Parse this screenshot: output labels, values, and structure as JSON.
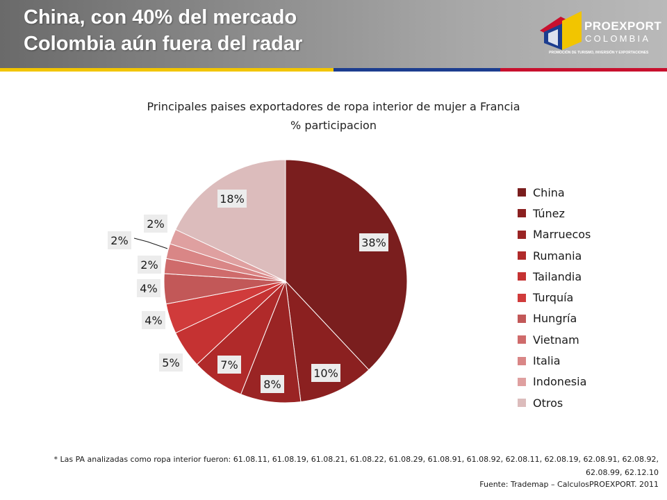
{
  "header": {
    "title_line1": "China, con 40% del mercado",
    "title_line2": "Colombia aún fuera del radar"
  },
  "logo": {
    "name": "PROEXPORT",
    "country": "COLOMBIA",
    "tagline": "PROMOCIÓN DE TURISMO, INVERSIÓN Y EXPORTACIONES"
  },
  "colors": {
    "flag_yellow": "#f2c500",
    "flag_blue": "#1c3d8f",
    "flag_red": "#c8102e"
  },
  "chart_data": {
    "type": "pie",
    "title_line1": "Principales paises exportadores de ropa interior de mujer a Francia",
    "title_line2": "% participacion",
    "legend_position": "right",
    "slices": [
      {
        "label": "China",
        "value": 38,
        "value_label": "38%",
        "color": "#7a1e1e"
      },
      {
        "label": "Túnez",
        "value": 10,
        "value_label": "10%",
        "color": "#8b2020"
      },
      {
        "label": "Marruecos",
        "value": 8,
        "value_label": "8%",
        "color": "#9a2424"
      },
      {
        "label": "Rumania",
        "value": 7,
        "value_label": "7%",
        "color": "#b02a2a"
      },
      {
        "label": "Tailandia",
        "value": 5,
        "value_label": "5%",
        "color": "#c53232"
      },
      {
        "label": "Turquía",
        "value": 4,
        "value_label": "4%",
        "color": "#d03b3b"
      },
      {
        "label": "Hungría",
        "value": 4,
        "value_label": "4%",
        "color": "#c25858"
      },
      {
        "label": "Vietnam",
        "value": 2,
        "value_label": "2%",
        "color": "#cf6b6b"
      },
      {
        "label": "Italia",
        "value": 2,
        "value_label": "2%",
        "color": "#d98686"
      },
      {
        "label": "Indonesia",
        "value": 2,
        "value_label": "2%",
        "color": "#dfa0a0"
      },
      {
        "label": "Otros",
        "value": 18,
        "value_label": "18%",
        "color": "#dcbcbc"
      }
    ]
  },
  "footnote": {
    "note": "* Las PA analizadas como ropa interior fueron: 61.08.11, 61.08.19, 61.08.21, 61.08.22, 61.08.29, 61.08.91, 61.08.92, 62.08.11, 62.08.19, 62.08.91, 62.08.92, 62.08.99, 62.12.10",
    "source": "Fuente: Trademap – CalculosPROEXPORT. 2011"
  }
}
